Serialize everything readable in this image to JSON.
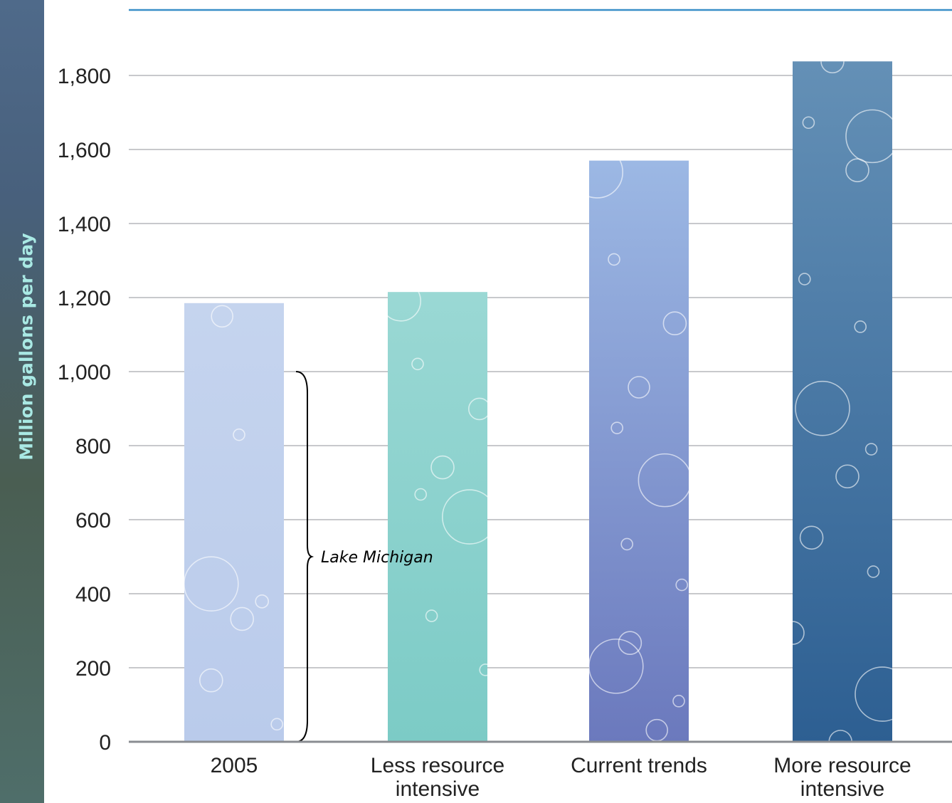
{
  "chart_data": {
    "type": "bar",
    "ylabel": "Million gallons per day",
    "xlabel": "",
    "categories": [
      "2005",
      "Less resource\nintensive",
      "Current trends",
      "More resource\nintensive"
    ],
    "values": [
      1185,
      1215,
      1570,
      1838
    ],
    "ylim": [
      0,
      1800
    ],
    "yticks": [
      0,
      200,
      400,
      600,
      800,
      1000,
      1200,
      1400,
      1600,
      1800
    ],
    "grid": true,
    "colors": {
      "top": [
        "#c5d4ee",
        "#9ad8d4",
        "#9cb8e4",
        "#6490b6"
      ],
      "bottom": [
        "#bacbeb",
        "#7ccbc6",
        "#6b79bd",
        "#2d5f92"
      ]
    },
    "annotation": {
      "label": "Lake Michigan",
      "from": 0,
      "to": 1000
    }
  }
}
